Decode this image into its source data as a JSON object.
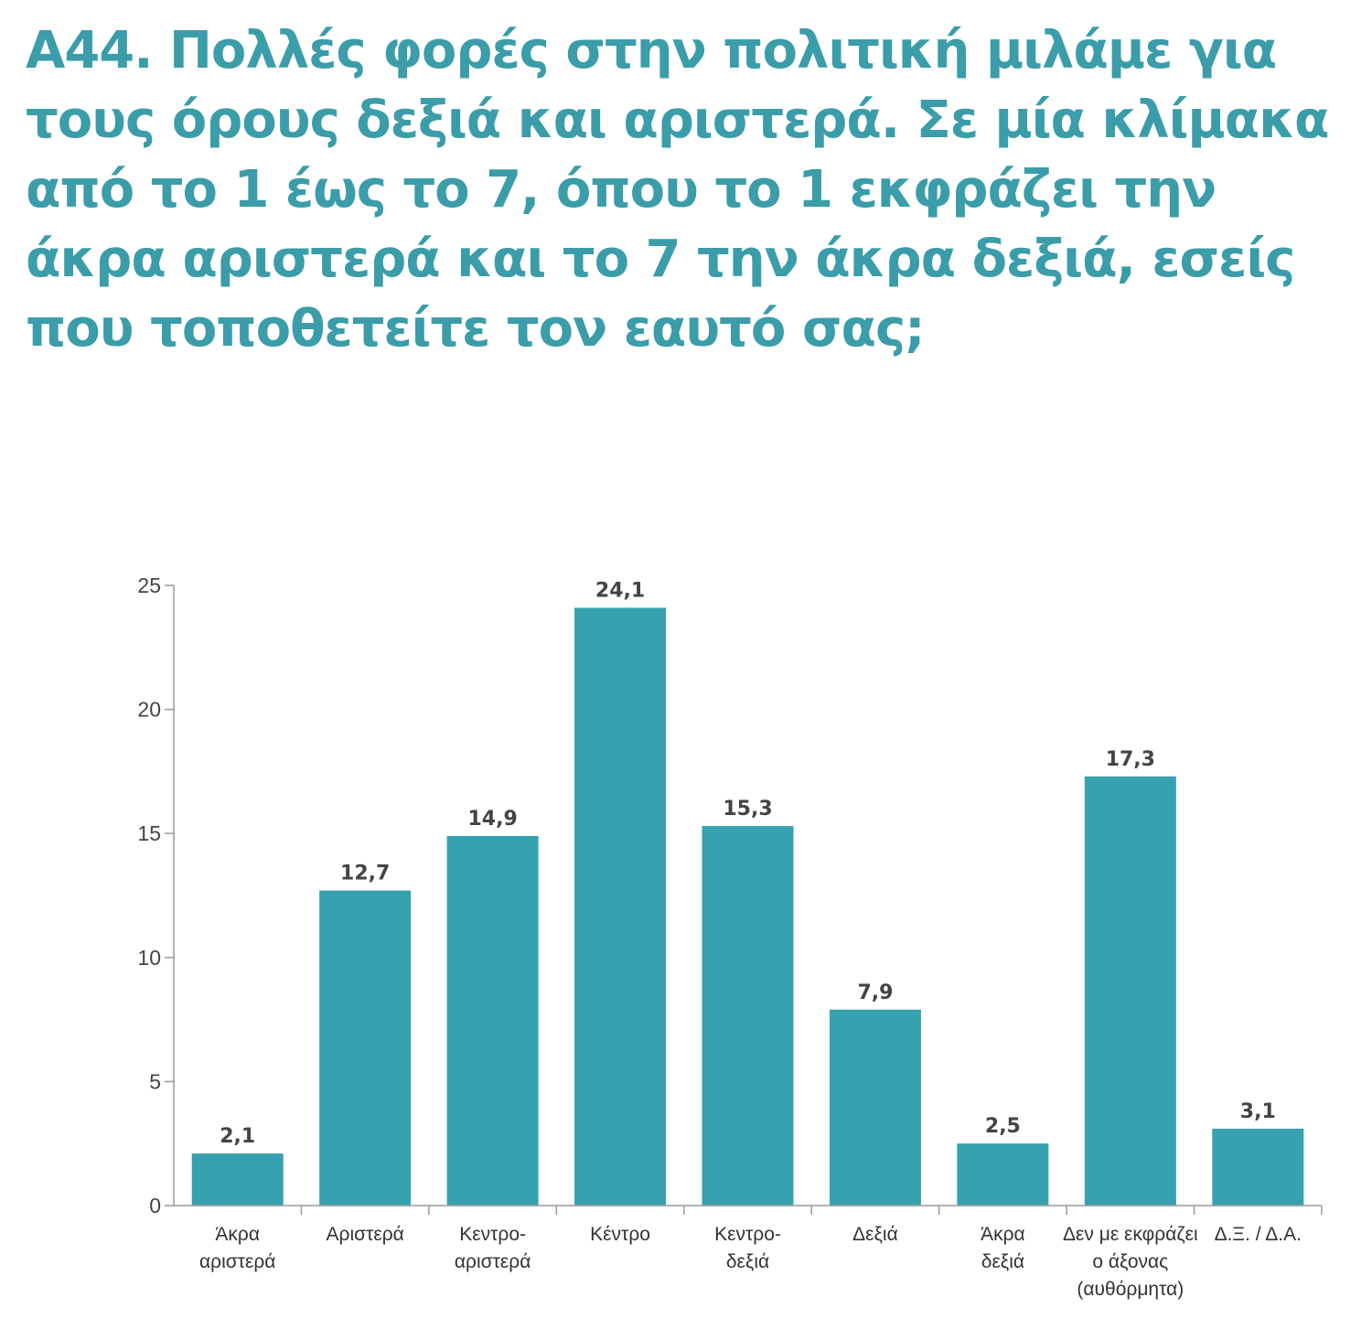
{
  "question": {
    "lines": [
      "Α44. Πολλές φορές στην πολιτική μιλάμε για",
      "τους όρους δεξιά και αριστερά. Σε μία κλίμακα",
      "από το 1 έως το 7, όπου το 1 εκφράζει την",
      "άκρα αριστερά και το 7 την άκρα δεξιά, εσείς",
      "που τοποθετείτε τον εαυτό σας;"
    ]
  },
  "colors": {
    "bar": "#36a1af",
    "title": "#3a9da9",
    "axis": "#9a9a9a",
    "text": "#444444"
  },
  "chart_data": {
    "type": "bar",
    "title": "Α44. Πολλές φορές στην πολιτική μιλάμε για τους όρους δεξιά και αριστερά. Σε μία κλίμακα από το 1 έως το 7, όπου το 1 εκφράζει την άκρα αριστερά και το 7 την άκρα δεξιά, εσείς που τοποθετείτε τον εαυτό σας;",
    "categories": [
      [
        "Άκρα",
        "αριστερά"
      ],
      [
        "Αριστερά"
      ],
      [
        "Κεντρο-",
        "αριστερά"
      ],
      [
        "Κέντρο"
      ],
      [
        "Κεντρο-",
        "δεξιά"
      ],
      [
        "Δεξιά"
      ],
      [
        "Άκρα",
        "δεξιά"
      ],
      [
        "Δεν με εκφράζει",
        "ο άξονας",
        "(αυθόρμητα)"
      ],
      [
        "Δ.Ξ. / Δ.Α."
      ]
    ],
    "values": [
      2.1,
      12.7,
      14.9,
      24.1,
      15.3,
      7.9,
      2.5,
      17.3,
      3.1
    ],
    "value_labels": [
      "2,1",
      "12,7",
      "14,9",
      "24,1",
      "15,3",
      "7,9",
      "2,5",
      "17,3",
      "3,1"
    ],
    "yticks": [
      0,
      5,
      10,
      15,
      20,
      25
    ],
    "ylim": [
      0,
      25
    ],
    "xlabel": "",
    "ylabel": "",
    "grid": false,
    "legend": "none"
  }
}
